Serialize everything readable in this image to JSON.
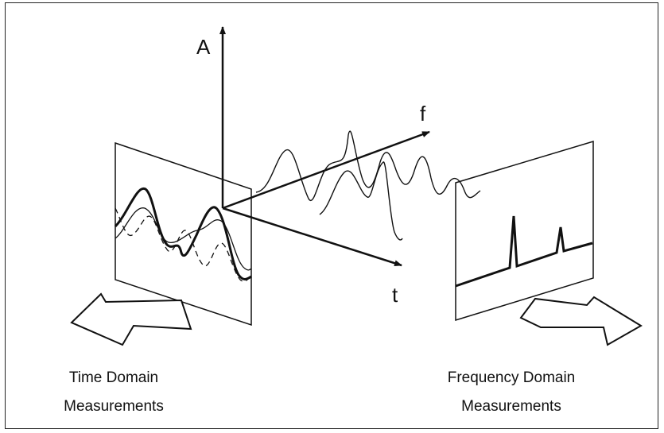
{
  "axes": {
    "amplitude": "A",
    "frequency": "f",
    "time": "t"
  },
  "captions": {
    "time_domain": [
      "Time Domain",
      "Measurements"
    ],
    "frequency_domain": [
      "Frequency Domain",
      "Measurements"
    ]
  },
  "icons": [
    "arrow-up-icon",
    "arrow-right-icon"
  ],
  "colors": {
    "line": "#111111",
    "background": "#ffffff"
  }
}
